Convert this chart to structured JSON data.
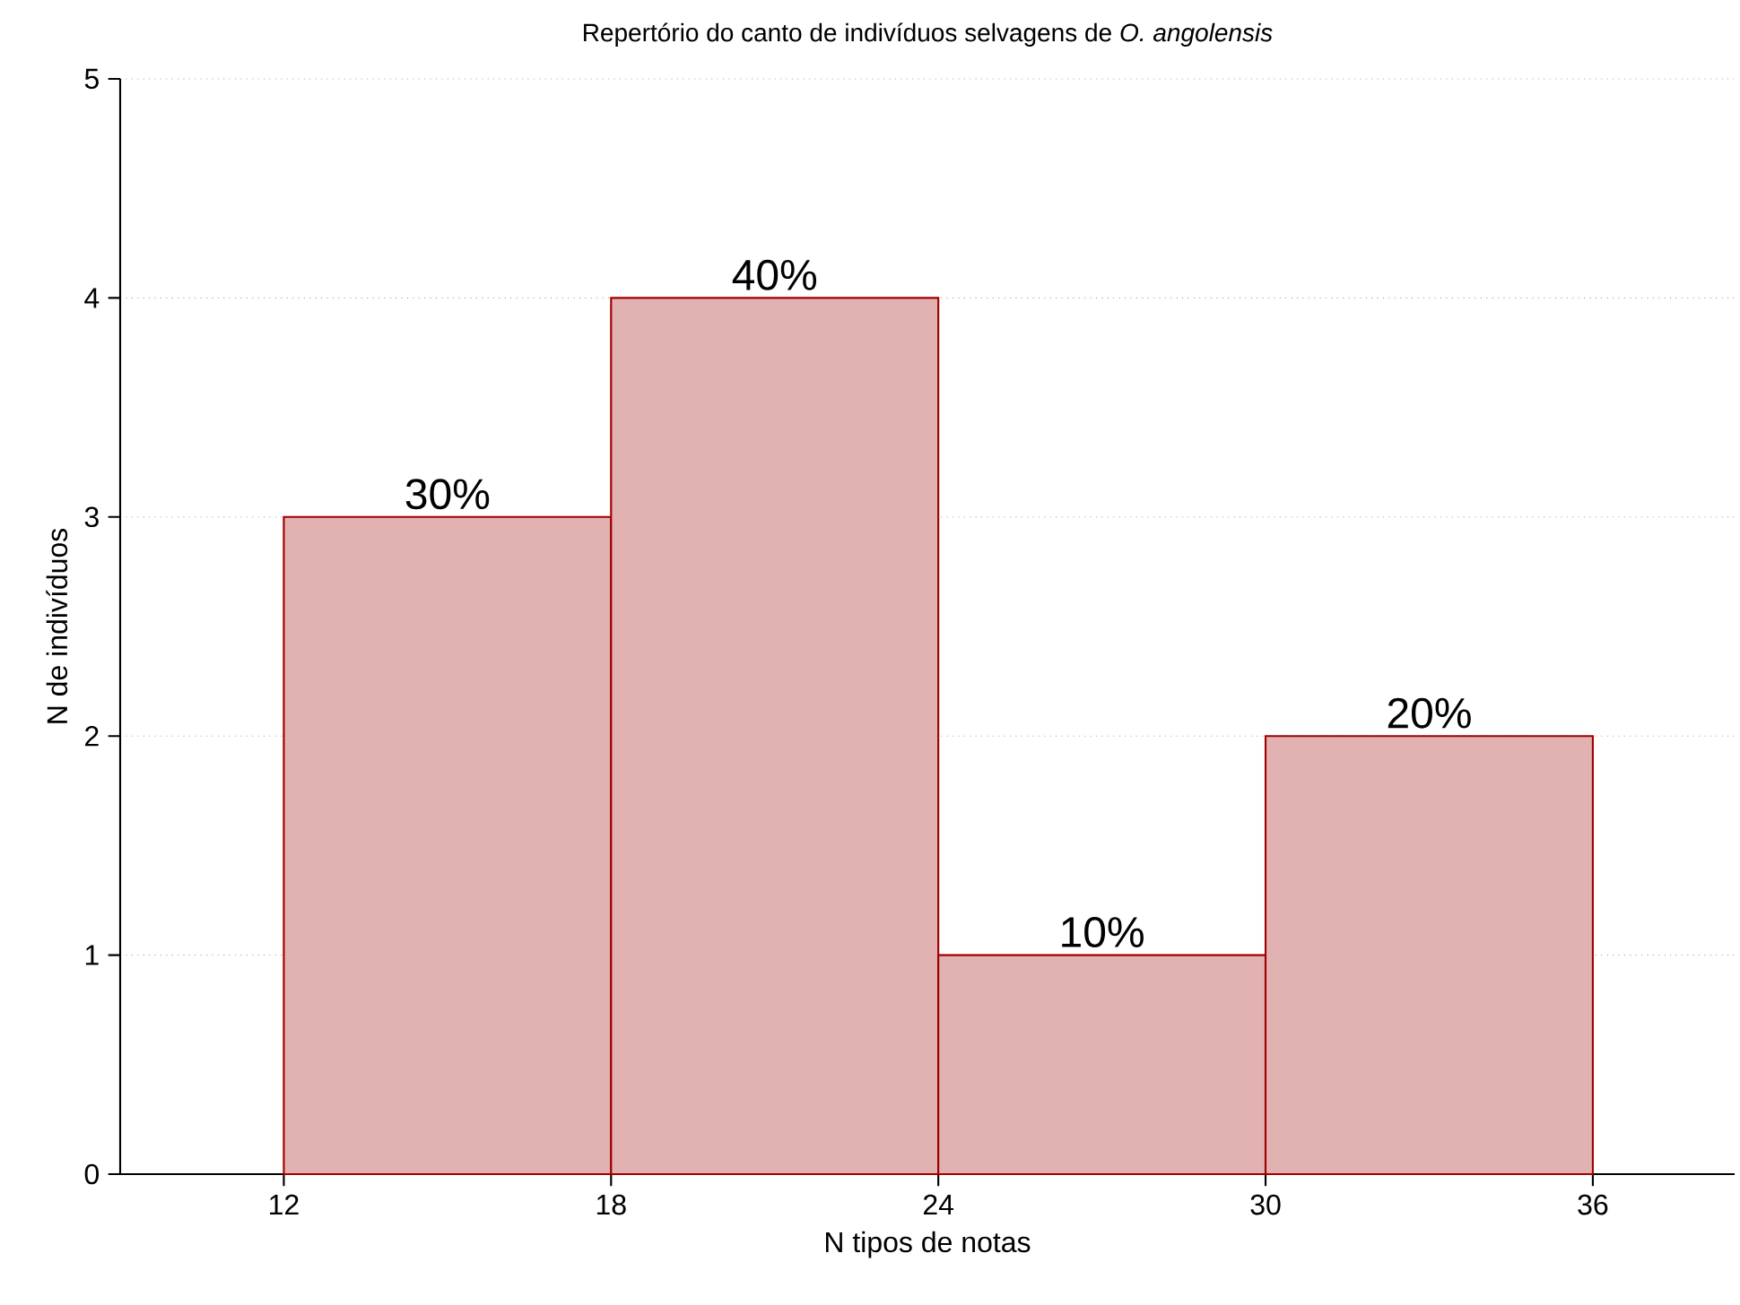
{
  "chart_data": {
    "type": "histogram",
    "title": "Repertório do canto de indivíduos selvagens de *O. angolensis*",
    "xlabel": "N tipos de notas",
    "ylabel": "N de indivíduos",
    "bins": [
      12,
      18,
      24,
      30,
      36
    ],
    "values": [
      3,
      4,
      1,
      2
    ],
    "annotations": [
      {
        "text": "30%",
        "x": 15,
        "y": 3
      },
      {
        "text": "40%",
        "x": 21,
        "y": 4
      },
      {
        "text": "10%",
        "x": 27,
        "y": 1
      },
      {
        "text": "20%",
        "x": 33,
        "y": 2
      }
    ],
    "color": "#a00000",
    "xlim": [
      9,
      38.6
    ],
    "ylim": [
      0,
      5
    ],
    "xticks": [
      12,
      18,
      24,
      30,
      36
    ],
    "yticks": [
      0,
      1,
      2,
      3,
      4,
      5
    ],
    "grid": "y"
  }
}
